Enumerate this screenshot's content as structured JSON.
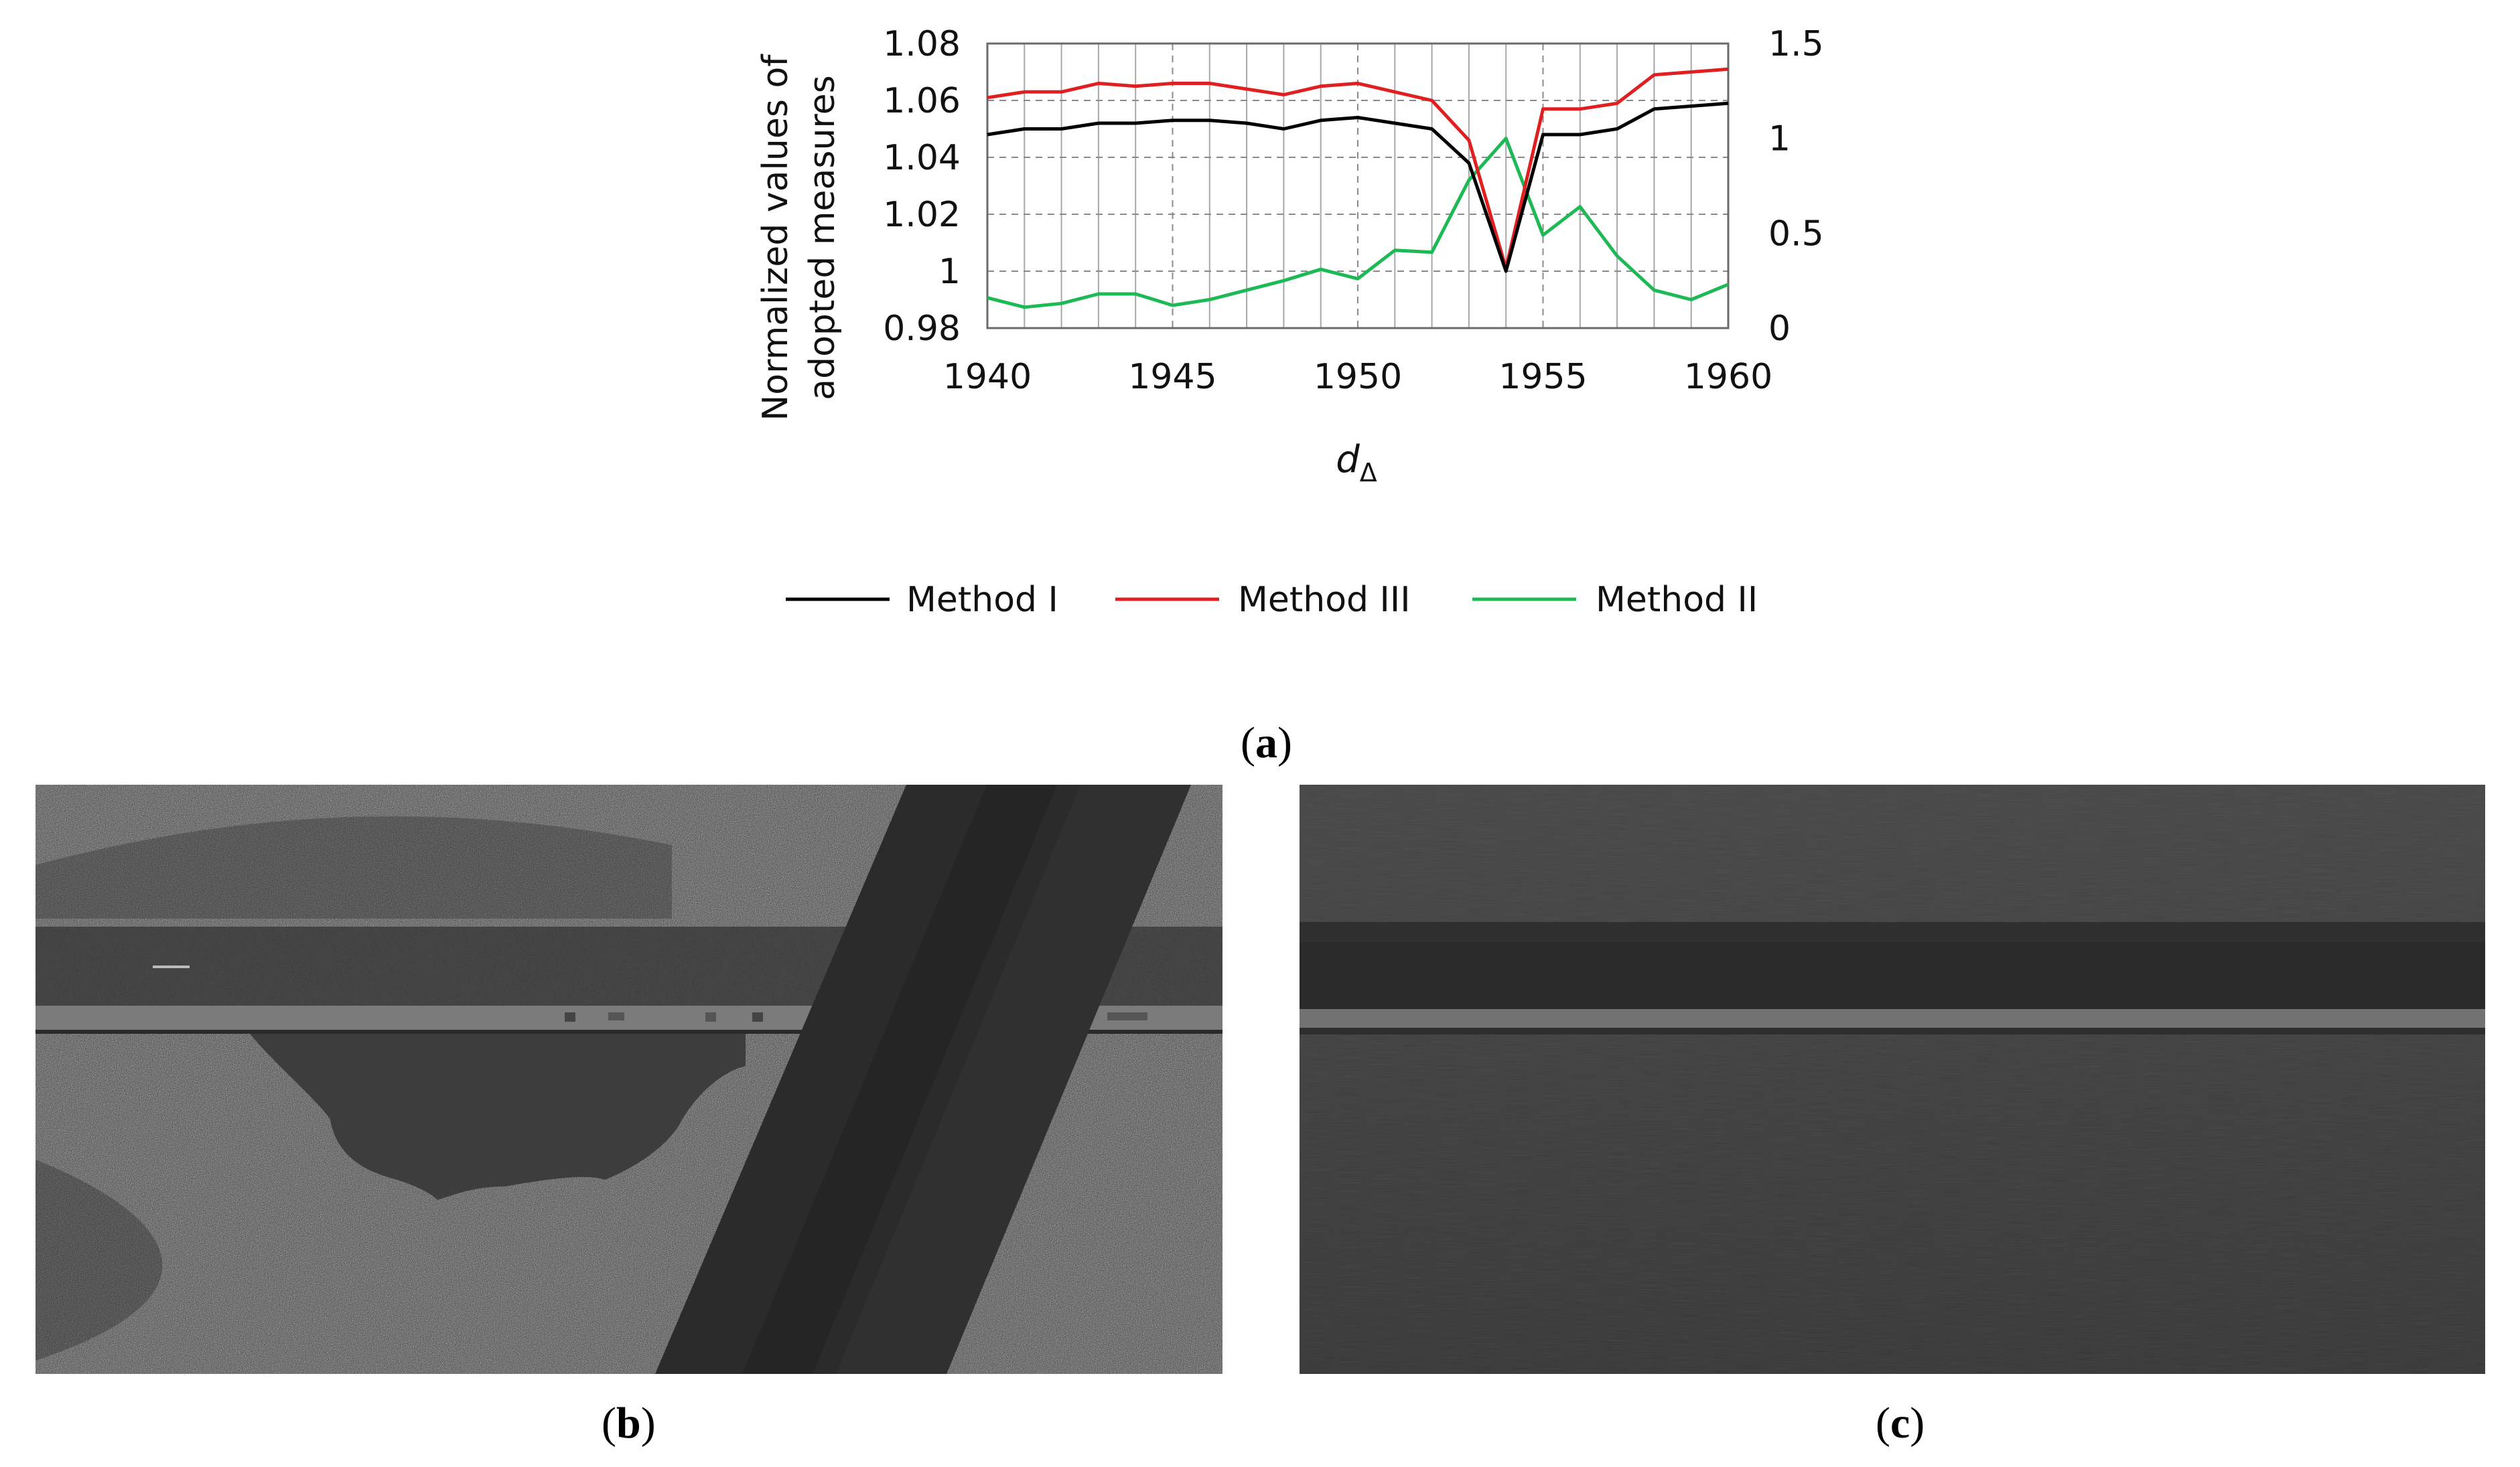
{
  "chart_data": {
    "type": "line",
    "x": [
      1940,
      1941,
      1942,
      1943,
      1944,
      1945,
      1946,
      1947,
      1948,
      1949,
      1950,
      1951,
      1952,
      1953,
      1954,
      1955,
      1956,
      1957,
      1958,
      1959,
      1960
    ],
    "xlabel": "d",
    "xlabel_subscript": "Δ",
    "ylabel": "Normalized values of adopted measures",
    "ylim": [
      0.98,
      1.08
    ],
    "y2lim": [
      0,
      1.5
    ],
    "xlim": [
      1940,
      1960
    ],
    "x_ticks": [
      "1940",
      "1945",
      "1950",
      "1955",
      "1960"
    ],
    "y_ticks": [
      "0.98",
      "1",
      "1.02",
      "1.04",
      "1.06",
      "1.08"
    ],
    "y2_ticks": [
      "0",
      "0.5",
      "1",
      "1.5"
    ],
    "grid": true,
    "legend_position": "bottom",
    "series": [
      {
        "name": "Method I",
        "axis": "left",
        "color": "#000000",
        "values": [
          1.048,
          1.05,
          1.05,
          1.052,
          1.052,
          1.053,
          1.053,
          1.052,
          1.05,
          1.053,
          1.054,
          1.052,
          1.05,
          1.038,
          1.0,
          1.048,
          1.048,
          1.05,
          1.057,
          1.058,
          1.059
        ]
      },
      {
        "name": "Method III",
        "axis": "left",
        "color": "#e02020",
        "values": [
          1.061,
          1.063,
          1.063,
          1.066,
          1.065,
          1.066,
          1.066,
          1.064,
          1.062,
          1.065,
          1.066,
          1.063,
          1.06,
          1.046,
          1.001,
          1.057,
          1.057,
          1.059,
          1.069,
          1.07,
          1.071
        ]
      },
      {
        "name": "Method II",
        "axis": "right",
        "color": "#1db954",
        "values": [
          0.16,
          0.11,
          0.13,
          0.18,
          0.18,
          0.12,
          0.15,
          0.2,
          0.25,
          0.31,
          0.26,
          0.41,
          0.4,
          0.78,
          1.0,
          0.49,
          0.64,
          0.38,
          0.2,
          0.15,
          0.23
        ]
      }
    ]
  },
  "labels": {
    "a": {
      "paren_open": "(",
      "letter": "a",
      "paren_close": ")"
    },
    "b": {
      "paren_open": "(",
      "letter": "b",
      "paren_close": ")"
    },
    "c": {
      "paren_open": "(",
      "letter": "c",
      "paren_close": ")"
    }
  },
  "colors": {
    "grid": "#9a9a9a",
    "frame": "#6a6a6a",
    "photo_b_bg": "#3a3a3a",
    "photo_c_bg": "#3c3c3c"
  }
}
